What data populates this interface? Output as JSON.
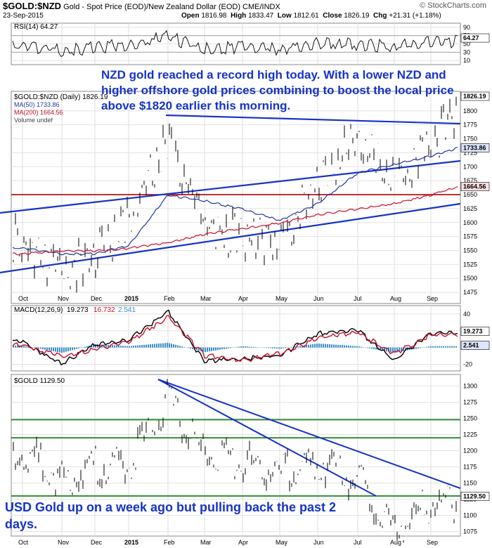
{
  "header": {
    "symbol": "$GOLD:$NZD",
    "description": "Gold - Spot Price (EOD)/New Zealand Dollar (EOD)",
    "exchange": "CME/INDX",
    "date": "23-Sep-2015",
    "open_label": "Open",
    "open": "1816.98",
    "high_label": "High",
    "high": "1833.47",
    "low_label": "Low",
    "low": "1812.61",
    "close_label": "Close",
    "close": "1826.19",
    "chg_label": "Chg",
    "chg": "+21.31 (+1.18%)",
    "brand": "© StockCharts.com"
  },
  "annotations": {
    "nzd_note": "NZD gold reached a record high today. With a lower NZD and higher offshore gold prices combining to boost the local price above $1820 earlier this morning.",
    "usd_note": "USD Gold up on a week ago but pulling back the past 2 days."
  },
  "colors": {
    "price": "#000000",
    "ma50": "#1f3a9c",
    "ma200": "#c8102e",
    "trend": "#1533c8",
    "hline_red": "#b00000",
    "hline_green": "#0a7a0a",
    "hist": "#3a8fc8"
  },
  "x_axis": {
    "labels": [
      "Oct",
      "Nov",
      "Dec",
      "2015",
      "Feb",
      "Mar",
      "Apr",
      "May",
      "Jun",
      "Jul",
      "Aug",
      "Sep"
    ]
  },
  "chart_data": [
    {
      "type": "line",
      "panel": "rsi",
      "legend": "RSI(14) 64.27",
      "current": "64.27",
      "y_ticks": [
        10,
        30,
        50,
        70,
        90
      ],
      "ylim": [
        0,
        100
      ],
      "levels": [
        30,
        70
      ],
      "x": [
        "Oct",
        "Nov",
        "Dec",
        "2015",
        "Feb",
        "Mar",
        "Apr",
        "May",
        "Jun",
        "Jul",
        "Aug",
        "Sep"
      ],
      "values": [
        52,
        42,
        50,
        55,
        76,
        45,
        52,
        46,
        60,
        58,
        50,
        64
      ]
    },
    {
      "type": "line",
      "panel": "price",
      "legend_title": "$GOLD:$NZD (Daily) 1826.19",
      "series_labels": [
        "MA(50) 1733.86",
        "MA(200) 1664.56",
        "Volume undef"
      ],
      "badges": [
        "1826.19",
        "1733.86",
        "1664.56"
      ],
      "y_ticks": [
        1475,
        1500,
        1525,
        1550,
        1575,
        1600,
        1625,
        1650,
        1675,
        1700,
        1725,
        1750,
        1775,
        1800
      ],
      "ylim": [
        1455,
        1835
      ],
      "horizontal_line": 1650,
      "series": [
        {
          "name": "$GOLD:$NZD",
          "x": [
            "Oct",
            "Nov",
            "Dec",
            "2015",
            "Feb",
            "Mar",
            "Apr",
            "May",
            "Jun",
            "Jul",
            "Aug",
            "Sep",
            "Sep-23"
          ],
          "values": [
            1590,
            1530,
            1560,
            1620,
            1775,
            1620,
            1590,
            1590,
            1690,
            1770,
            1690,
            1750,
            1826
          ]
        },
        {
          "name": "MA(50)",
          "x": [
            "Oct",
            "Nov",
            "Dec",
            "2015",
            "Feb",
            "Mar",
            "Apr",
            "May",
            "Jun",
            "Jul",
            "Aug",
            "Sep",
            "Sep-23"
          ],
          "values": [
            1555,
            1545,
            1545,
            1560,
            1650,
            1640,
            1625,
            1605,
            1635,
            1690,
            1705,
            1720,
            1734
          ]
        },
        {
          "name": "MA(200)",
          "x": [
            "Oct",
            "Nov",
            "Dec",
            "2015",
            "Feb",
            "Mar",
            "Apr",
            "May",
            "Jun",
            "Jul",
            "Aug",
            "Sep",
            "Sep-23"
          ],
          "values": [
            1545,
            1550,
            1550,
            1555,
            1565,
            1580,
            1590,
            1600,
            1615,
            1625,
            1635,
            1650,
            1665
          ]
        }
      ]
    },
    {
      "type": "line",
      "panel": "macd",
      "legend": [
        "MACD(12,26,9)",
        "19.273",
        "16.732",
        "2.541"
      ],
      "badges": [
        "19.273",
        "2.541"
      ],
      "y_ticks": [
        -20,
        0,
        20,
        40
      ],
      "ylim": [
        -28,
        50
      ],
      "series": [
        {
          "name": "MACD",
          "x": [
            "Oct",
            "Nov",
            "Dec",
            "2015",
            "Feb",
            "Mar",
            "Apr",
            "May",
            "Jun",
            "Jul",
            "Aug",
            "Sep"
          ],
          "values": [
            8,
            -18,
            5,
            10,
            45,
            -15,
            -12,
            -8,
            18,
            22,
            -14,
            19
          ]
        },
        {
          "name": "Signal",
          "x": [
            "Oct",
            "Nov",
            "Dec",
            "2015",
            "Feb",
            "Mar",
            "Apr",
            "May",
            "Jun",
            "Jul",
            "Aug",
            "Sep"
          ],
          "values": [
            5,
            -10,
            0,
            8,
            38,
            -8,
            -14,
            -6,
            12,
            20,
            -6,
            17
          ]
        }
      ]
    },
    {
      "type": "line",
      "panel": "gold_usd",
      "legend": "$GOLD 1129.50",
      "badge": "1129.50",
      "y_ticks": [
        1075,
        1100,
        1125,
        1150,
        1175,
        1200,
        1225,
        1250,
        1275,
        1300
      ],
      "ylim": [
        1068,
        1318
      ],
      "horizontal_lines": [
        1248,
        1220,
        1130
      ],
      "x": [
        "Oct",
        "Nov",
        "Dec",
        "2015",
        "Feb",
        "Mar",
        "Apr",
        "May",
        "Jun",
        "Jul",
        "Aug",
        "Sep",
        "Sep-23"
      ],
      "values": [
        1215,
        1170,
        1195,
        1190,
        1295,
        1210,
        1200,
        1180,
        1200,
        1170,
        1090,
        1135,
        1130
      ]
    }
  ]
}
